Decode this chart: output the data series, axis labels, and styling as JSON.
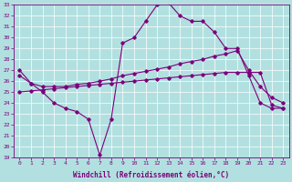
{
  "xlabel": "Windchill (Refroidissement éolien,°C)",
  "bg_color": "#b2e0e0",
  "line_color": "#7b007b",
  "grid_color": "#ffffff",
  "xlim": [
    -0.5,
    23.5
  ],
  "ylim": [
    19,
    33
  ],
  "yticks": [
    19,
    20,
    21,
    22,
    23,
    24,
    25,
    26,
    27,
    28,
    29,
    30,
    31,
    32,
    33
  ],
  "xticks": [
    0,
    1,
    2,
    3,
    4,
    5,
    6,
    7,
    8,
    9,
    10,
    11,
    12,
    13,
    14,
    15,
    16,
    17,
    18,
    19,
    20,
    21,
    22,
    23
  ],
  "line1_x": [
    0,
    1,
    2,
    3,
    4,
    5,
    6,
    7,
    8,
    9,
    10,
    11,
    12,
    13,
    14,
    15,
    16,
    17,
    18,
    19,
    20,
    21,
    22,
    23
  ],
  "line1_y": [
    27.0,
    25.8,
    25.0,
    24.0,
    23.5,
    23.2,
    22.5,
    19.2,
    22.5,
    29.5,
    30.0,
    31.5,
    33.0,
    33.2,
    32.0,
    31.5,
    31.5,
    30.5,
    29.0,
    29.0,
    26.5,
    24.0,
    23.5,
    23.5
  ],
  "line2_x": [
    0,
    1,
    2,
    3,
    4,
    5,
    6,
    7,
    8,
    9,
    10,
    11,
    12,
    13,
    14,
    15,
    16,
    17,
    18,
    19,
    20,
    21,
    22,
    23
  ],
  "line2_y": [
    26.5,
    25.8,
    25.5,
    25.5,
    25.5,
    25.7,
    25.8,
    26.0,
    26.2,
    26.5,
    26.7,
    26.9,
    27.1,
    27.3,
    27.6,
    27.8,
    28.0,
    28.3,
    28.5,
    28.8,
    27.0,
    25.5,
    24.5,
    24.0
  ],
  "line3_x": [
    0,
    1,
    2,
    3,
    4,
    5,
    6,
    7,
    8,
    9,
    10,
    11,
    12,
    13,
    14,
    15,
    16,
    17,
    18,
    19,
    20,
    21,
    22,
    23
  ],
  "line3_y": [
    25.0,
    25.1,
    25.2,
    25.3,
    25.4,
    25.5,
    25.6,
    25.7,
    25.8,
    25.9,
    26.0,
    26.1,
    26.2,
    26.3,
    26.4,
    26.5,
    26.6,
    26.7,
    26.8,
    26.8,
    26.8,
    26.8,
    23.8,
    23.5
  ]
}
